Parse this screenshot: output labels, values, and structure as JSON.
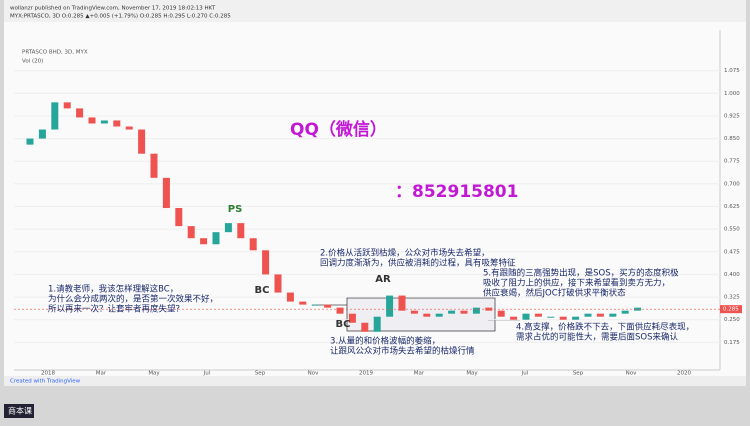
{
  "header": {
    "author_line": "wollanzr published on TradingView.com, November 17, 2019 18:02:13 HKT",
    "symbol_line": "MYX:PRTASCO, 3D  O:0.285 ▲+0.005 (+1.79%)  O:0.285  H:0.295  L:0.270  C:0.285"
  },
  "chart_data": {
    "type": "candlestick",
    "title": "PRTASCO BHD, 3D, MYX",
    "volume_label": "Vol (20)",
    "up_color": "#26a69a",
    "down_color": "#ef5350",
    "open": [
      0.83,
      0.85,
      0.88,
      0.97,
      0.95,
      0.92,
      0.9,
      0.91,
      0.89,
      0.88,
      0.8,
      0.72,
      0.62,
      0.56,
      0.52,
      0.5,
      0.54,
      0.57,
      0.52,
      0.48,
      0.4,
      0.34,
      0.31,
      0.3,
      0.3,
      0.29,
      0.27,
      0.24,
      0.21,
      0.26,
      0.33,
      0.28,
      0.27,
      0.26,
      0.27,
      0.28,
      0.27,
      0.29,
      0.28,
      0.26,
      0.25,
      0.27,
      0.26,
      0.26,
      0.25,
      0.26,
      0.27,
      0.26,
      0.27,
      0.28
    ],
    "close": [
      0.85,
      0.88,
      0.97,
      0.95,
      0.92,
      0.9,
      0.91,
      0.89,
      0.88,
      0.8,
      0.72,
      0.62,
      0.56,
      0.52,
      0.5,
      0.54,
      0.57,
      0.52,
      0.48,
      0.4,
      0.34,
      0.31,
      0.3,
      0.3,
      0.29,
      0.27,
      0.24,
      0.21,
      0.26,
      0.33,
      0.28,
      0.27,
      0.26,
      0.27,
      0.28,
      0.27,
      0.29,
      0.28,
      0.26,
      0.25,
      0.27,
      0.26,
      0.26,
      0.25,
      0.26,
      0.27,
      0.26,
      0.27,
      0.28,
      0.29
    ],
    "ylim": [
      0.1,
      1.16
    ],
    "yticks": [
      1.075,
      {
        "value": 1.0,
        "label": "1.000"
      },
      0.925,
      {
        "value": 0.85,
        "label": "0.850"
      },
      0.775,
      {
        "value": 0.7,
        "label": "0.700"
      },
      0.625,
      {
        "value": 0.55,
        "label": "0.550"
      },
      0.475,
      {
        "value": 0.4,
        "label": "0.400"
      },
      0.325,
      {
        "value": 0.25,
        "label": "0.250"
      },
      0.175
    ],
    "last_price": 0.285,
    "xlabels": [
      "2018",
      "Mar",
      "May",
      "Jul",
      "Sep",
      "Nov",
      "2019",
      "Mar",
      "May",
      "Jul",
      "Sep",
      "Nov",
      "2020"
    ],
    "labels": [
      "PS",
      "BC",
      "AR",
      "BC"
    ],
    "contact": [
      "QQ（微信）",
      "：852915801"
    ],
    "annotations": [
      {
        "lines": [
          "1.请教老师，我该怎样理解这BC，",
          "为什么会分成两次的，是否第一次效果不好，",
          "所以再来一次？让套牢者再度失望？"
        ]
      },
      {
        "lines": [
          "2.价格从活跃到枯燥，公众对市场失去希望，",
          "回调力度渐渐为，供应被消耗的过程，具有吸筹特征"
        ]
      },
      {
        "lines": [
          "3.从量的和价格波幅的萎缩，",
          "让跟风公众对市场失去希望的枯燥行情"
        ]
      },
      {
        "lines": [
          "4.高支撑，价格跌不下去，下面供应耗尽表现，",
          "需求占优的可能性大，需要后面SOS来确认"
        ]
      },
      {
        "lines": [
          "5.有跟随的三高强势出现，是SOS，买方的态度积极",
          "吸收了阻力上的供应，接下来希望看到卖方无力，",
          "供应衰竭，然后JOC打破供求平衡状态"
        ]
      }
    ]
  },
  "footer": {
    "credit": "Created with TradingView",
    "corner": "商本课"
  }
}
